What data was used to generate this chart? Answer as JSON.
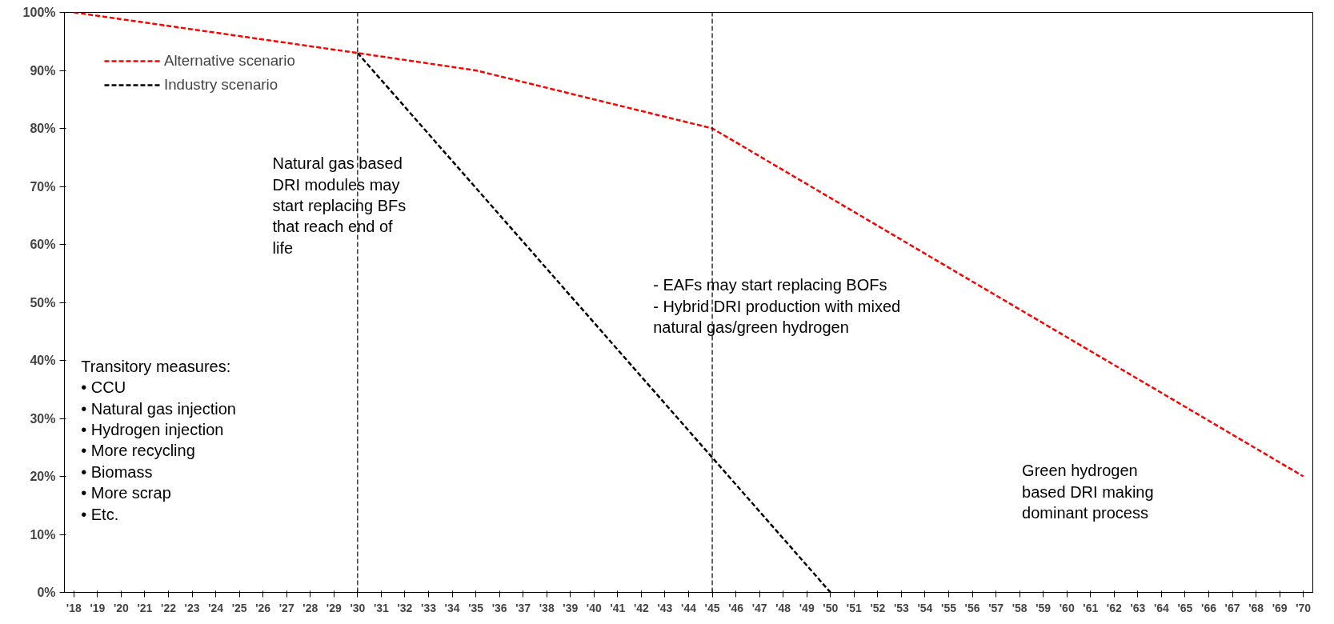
{
  "chart_data": {
    "type": "line",
    "series": [
      {
        "name": "Alternative scenario",
        "color": "#ff0000",
        "x": [
          2018,
          2030,
          2035,
          2045,
          2070
        ],
        "values": [
          100,
          93,
          90,
          80,
          20
        ]
      },
      {
        "name": "Industry scenario",
        "color": "#000000",
        "x": [
          2030,
          2050
        ],
        "values": [
          93,
          0
        ]
      }
    ],
    "line_style": "dashed",
    "marker": "none",
    "grid": false,
    "legend": "top left",
    "xlim": [
      2017.6,
      2070.4
    ],
    "ylim": [
      0,
      100
    ],
    "xticks": [
      {
        "value": 2018,
        "label": "'18"
      },
      {
        "value": 2019,
        "label": "'19"
      },
      {
        "value": 2020,
        "label": "'20"
      },
      {
        "value": 2021,
        "label": "'21"
      },
      {
        "value": 2022,
        "label": "'22"
      },
      {
        "value": 2023,
        "label": "'23"
      },
      {
        "value": 2024,
        "label": "'24"
      },
      {
        "value": 2025,
        "label": "'25"
      },
      {
        "value": 2026,
        "label": "'26"
      },
      {
        "value": 2027,
        "label": "'27"
      },
      {
        "value": 2028,
        "label": "'28"
      },
      {
        "value": 2029,
        "label": "'29"
      },
      {
        "value": 2030,
        "label": "'30"
      },
      {
        "value": 2031,
        "label": "'31"
      },
      {
        "value": 2032,
        "label": "'32"
      },
      {
        "value": 2033,
        "label": "'33"
      },
      {
        "value": 2034,
        "label": "'34"
      },
      {
        "value": 2035,
        "label": "'35"
      },
      {
        "value": 2036,
        "label": "'36"
      },
      {
        "value": 2037,
        "label": "'37"
      },
      {
        "value": 2038,
        "label": "'38"
      },
      {
        "value": 2039,
        "label": "'39"
      },
      {
        "value": 2040,
        "label": "'40"
      },
      {
        "value": 2041,
        "label": "'41"
      },
      {
        "value": 2042,
        "label": "'42"
      },
      {
        "value": 2043,
        "label": "'43"
      },
      {
        "value": 2044,
        "label": "'44"
      },
      {
        "value": 2045,
        "label": "'45"
      },
      {
        "value": 2046,
        "label": "'46"
      },
      {
        "value": 2047,
        "label": "'47"
      },
      {
        "value": 2048,
        "label": "'48"
      },
      {
        "value": 2049,
        "label": "'49"
      },
      {
        "value": 2050,
        "label": "'50"
      },
      {
        "value": 2051,
        "label": "'51"
      },
      {
        "value": 2052,
        "label": "'52"
      },
      {
        "value": 2053,
        "label": "'53"
      },
      {
        "value": 2054,
        "label": "'54"
      },
      {
        "value": 2055,
        "label": "'55"
      },
      {
        "value": 2056,
        "label": "'56"
      },
      {
        "value": 2057,
        "label": "'57"
      },
      {
        "value": 2058,
        "label": "'58"
      },
      {
        "value": 2059,
        "label": "'59"
      },
      {
        "value": 2060,
        "label": "'60"
      },
      {
        "value": 2061,
        "label": "'61"
      },
      {
        "value": 2062,
        "label": "'62"
      },
      {
        "value": 2063,
        "label": "'63"
      },
      {
        "value": 2064,
        "label": "'64"
      },
      {
        "value": 2065,
        "label": "'65"
      },
      {
        "value": 2066,
        "label": "'66"
      },
      {
        "value": 2067,
        "label": "'67"
      },
      {
        "value": 2068,
        "label": "'68"
      },
      {
        "value": 2069,
        "label": "'69"
      },
      {
        "value": 2070,
        "label": "'70"
      }
    ],
    "yticks": [
      {
        "value": 0,
        "label": "0%"
      },
      {
        "value": 10,
        "label": "10%"
      },
      {
        "value": 20,
        "label": "20%"
      },
      {
        "value": 30,
        "label": "30%"
      },
      {
        "value": 40,
        "label": "40%"
      },
      {
        "value": 50,
        "label": "50%"
      },
      {
        "value": 60,
        "label": "60%"
      },
      {
        "value": 70,
        "label": "70%"
      },
      {
        "value": 80,
        "label": "80%"
      },
      {
        "value": 90,
        "label": "90%"
      },
      {
        "value": 100,
        "label": "100%"
      }
    ],
    "ref_lines": [
      {
        "axis": "x",
        "value": 2030,
        "label": null,
        "color": "#000000",
        "line_style": "dashed"
      },
      {
        "axis": "x",
        "value": 2045,
        "label": null,
        "color": "#000000",
        "line_style": "dashed"
      }
    ],
    "annotations": [
      "Natural gas based\nDRI modules may\nstart replacing BFs\nthat reach end of\nlife",
      "- EAFs may start replacing BOFs\n- Hybrid DRI production with mixed\nnatural gas/green hydrogen",
      "Transitory measures:\n•      CCU\n•      Natural gas injection\n•      Hydrogen injection\n•      More recycling\n•      Biomass\n•      More scrap\n•      Etc.",
      "Green hydrogen\nbased DRI making\ndominant process"
    ]
  }
}
